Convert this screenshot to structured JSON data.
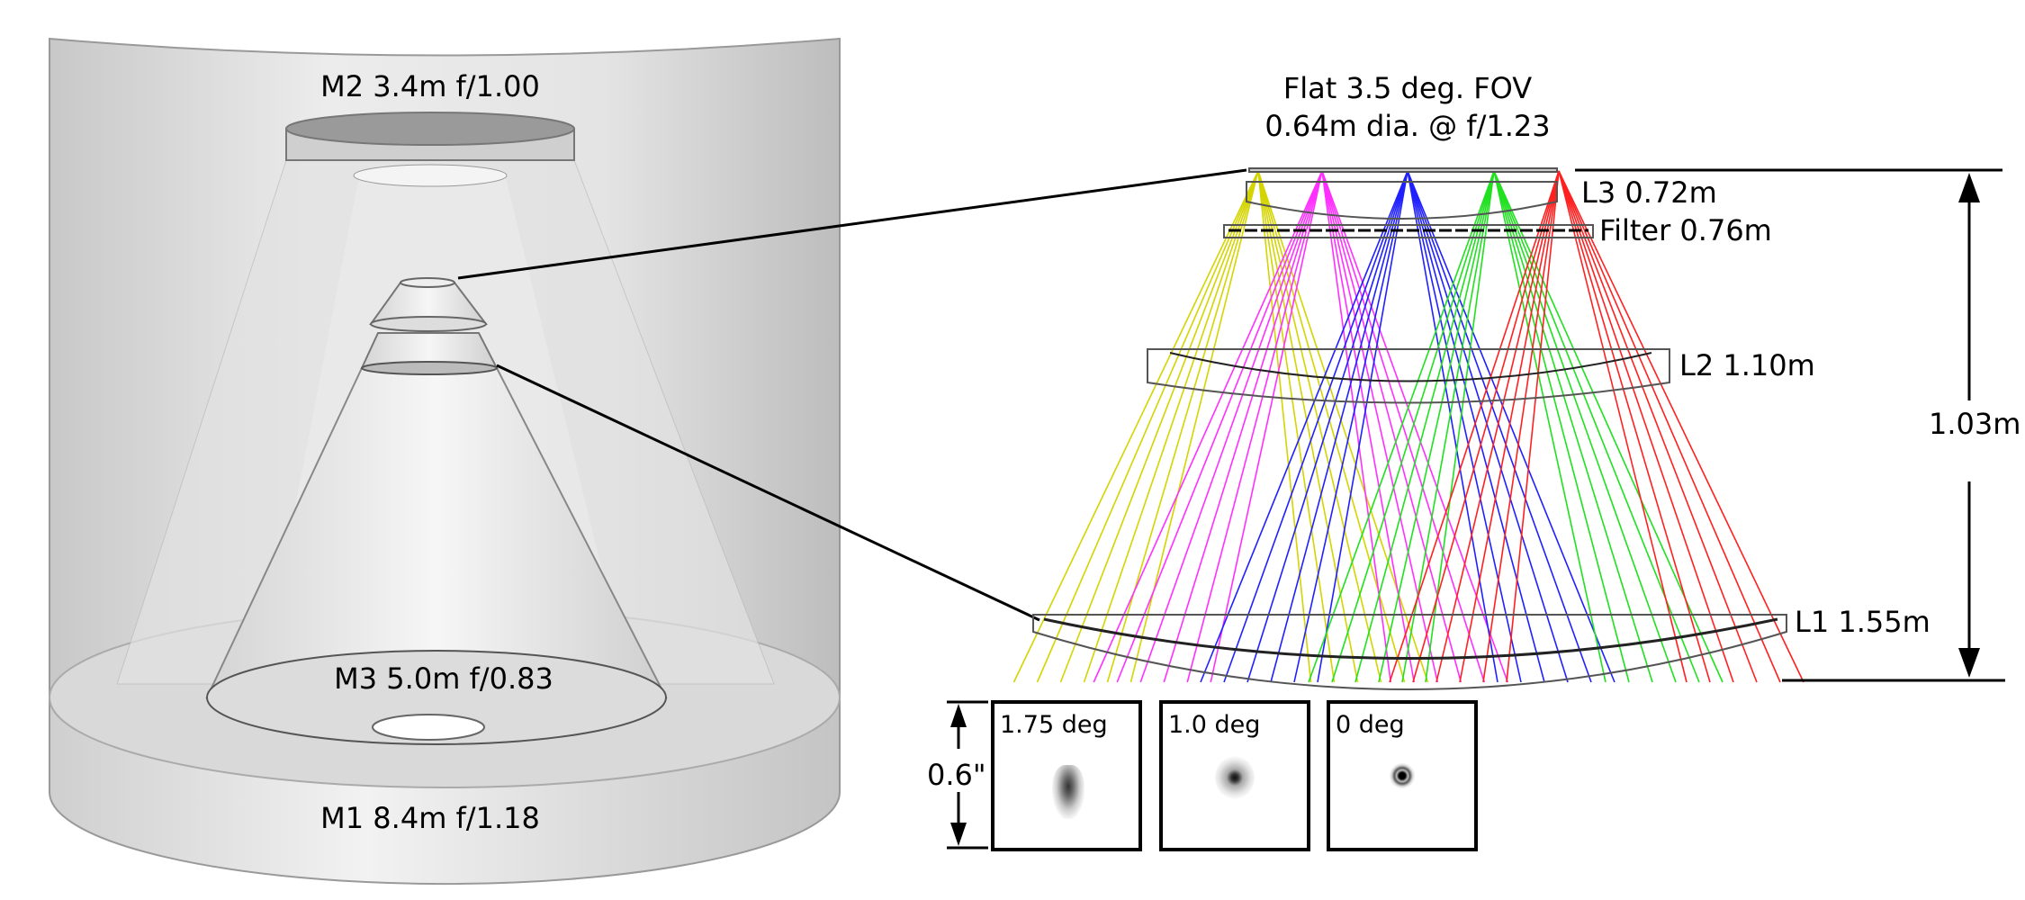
{
  "telescope": {
    "m2_label": "M2 3.4m f/1.00",
    "m3_label": "M3 5.0m f/0.83",
    "m1_label": "M1 8.4m f/1.18"
  },
  "camera": {
    "title_line1": "Flat 3.5 deg. FOV",
    "title_line2": "0.64m dia. @ f/1.23",
    "l3_label": "L3 0.72m",
    "filter_label": "Filter 0.76m",
    "l2_label": "L2 1.10m",
    "l1_label": "L1 1.55m",
    "height_label": "1.03m",
    "ray_colors": [
      "#d4d400",
      "#ff30ff",
      "#2020ff",
      "#20e020",
      "#ff2020"
    ]
  },
  "psf": {
    "scale_label": "0.6\"",
    "panels": [
      {
        "label": "1.75 deg"
      },
      {
        "label": "1.0 deg"
      },
      {
        "label": "0 deg"
      }
    ]
  }
}
